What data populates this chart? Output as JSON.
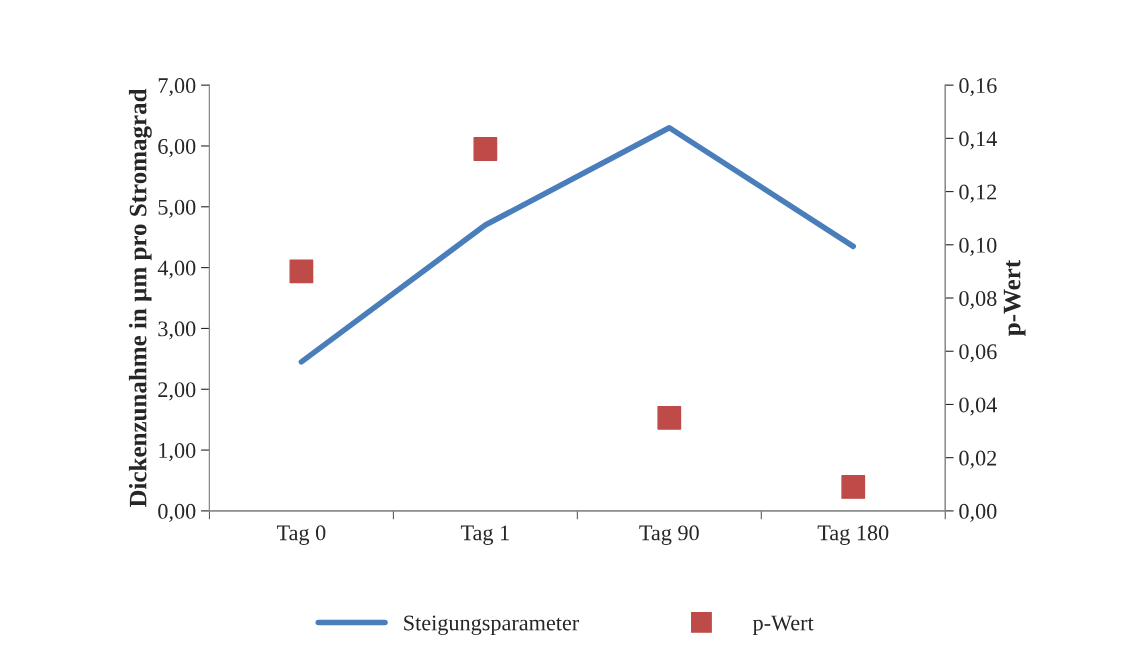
{
  "chart_data": {
    "type": "line",
    "categories": [
      "Tag 0",
      "Tag 1",
      "Tag 90",
      "Tag 180"
    ],
    "ylabel": "Dickenzunahme in µm pro Stromagrad",
    "y2label": "p-Wert",
    "series": [
      {
        "name": "Steigungsparameter",
        "color": "#4a7ebb",
        "values": [
          2.45,
          4.7,
          6.3,
          4.35
        ],
        "marker": "none",
        "line_style": "solid"
      },
      {
        "name": "p-Wert",
        "type": "scatter",
        "axis": "y2",
        "color": "#be4b48",
        "values": [
          0.09,
          0.136,
          0.035,
          0.009
        ],
        "marker": "square"
      }
    ],
    "ylim": [
      0,
      7
    ],
    "yticks": [
      {
        "value": 0,
        "label": "0,00"
      },
      {
        "value": 1,
        "label": "1,00"
      },
      {
        "value": 2,
        "label": "2,00"
      },
      {
        "value": 3,
        "label": "3,00"
      },
      {
        "value": 4,
        "label": "4,00"
      },
      {
        "value": 5,
        "label": "5,00"
      },
      {
        "value": 6,
        "label": "6,00"
      },
      {
        "value": 7,
        "label": "7,00"
      }
    ],
    "y2lim": [
      0,
      0.16
    ],
    "y2ticks": [
      {
        "value": 0,
        "label": "0,00"
      },
      {
        "value": 0.02,
        "label": "0,02"
      },
      {
        "value": 0.04,
        "label": "0,04"
      },
      {
        "value": 0.06,
        "label": "0,06"
      },
      {
        "value": 0.08,
        "label": "0,08"
      },
      {
        "value": 0.1,
        "label": "0,10"
      },
      {
        "value": 0.12,
        "label": "0,12"
      },
      {
        "value": 0.14,
        "label": "0,14"
      },
      {
        "value": 0.16,
        "label": "0,16"
      }
    ],
    "grid": false,
    "legend": "bottom"
  }
}
